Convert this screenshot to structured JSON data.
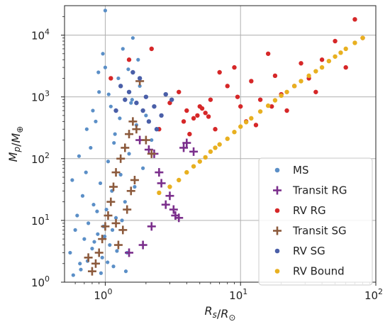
{
  "chart_data": {
    "type": "scatter",
    "title": "",
    "xlabel": "R_s/R_⊙",
    "ylabel": "M_p/M_⊕",
    "x_scale": "log",
    "y_scale": "log",
    "xlim": [
      0.5,
      100
    ],
    "ylim": [
      1,
      30000
    ],
    "x_ticks": [
      {
        "value": 1,
        "label": "10^0"
      },
      {
        "value": 10,
        "label": "10^1"
      },
      {
        "value": 100,
        "label": "10^2"
      }
    ],
    "y_ticks": [
      {
        "value": 1,
        "label": "10^0"
      },
      {
        "value": 10,
        "label": "10^1"
      },
      {
        "value": 100,
        "label": "10^2"
      },
      {
        "value": 1000,
        "label": "10^3"
      },
      {
        "value": 10000,
        "label": "10^4"
      }
    ],
    "grid": true,
    "legend_position": "lower-right",
    "series": [
      {
        "name": "MS",
        "marker": "dot",
        "color": "#5b8fc7",
        "points": [
          [
            0.55,
            3
          ],
          [
            0.6,
            7
          ],
          [
            0.62,
            12
          ],
          [
            0.65,
            2
          ],
          [
            0.68,
            25
          ],
          [
            0.7,
            5
          ],
          [
            0.72,
            60
          ],
          [
            0.75,
            9
          ],
          [
            0.78,
            150
          ],
          [
            0.8,
            3.5
          ],
          [
            0.82,
            18
          ],
          [
            0.85,
            400
          ],
          [
            0.88,
            6
          ],
          [
            0.9,
            1200
          ],
          [
            0.92,
            40
          ],
          [
            0.95,
            2.5
          ],
          [
            0.97,
            8
          ],
          [
            1.0,
            3000
          ],
          [
            1.02,
            15
          ],
          [
            1.05,
            90
          ],
          [
            1.08,
            4
          ],
          [
            1.1,
            700
          ],
          [
            1.12,
            30
          ],
          [
            1.15,
            1.8
          ],
          [
            1.18,
            250
          ],
          [
            1.2,
            11
          ],
          [
            1.25,
            2000
          ],
          [
            1.3,
            55
          ],
          [
            1.35,
            6000
          ],
          [
            1.4,
            20
          ],
          [
            1.45,
            3
          ],
          [
            1.5,
            120
          ],
          [
            1.55,
            800
          ],
          [
            1.6,
            9000
          ],
          [
            1.65,
            35
          ],
          [
            1.7,
            350
          ],
          [
            1.8,
            1500
          ],
          [
            1.9,
            70
          ],
          [
            2.0,
            500
          ],
          [
            2.2,
            200
          ],
          [
            0.58,
            1.3
          ],
          [
            0.66,
            1.6
          ],
          [
            0.74,
            2.2
          ],
          [
            0.83,
            4.5
          ],
          [
            0.87,
            14
          ],
          [
            0.93,
            1.4
          ],
          [
            0.99,
            5.5
          ],
          [
            1.04,
            2.1
          ],
          [
            1.13,
            7
          ],
          [
            1.22,
            3.2
          ],
          [
            1.33,
            10
          ],
          [
            1.42,
            1.5
          ],
          [
            0.57,
            45
          ],
          [
            0.64,
            110
          ],
          [
            0.73,
            300
          ],
          [
            0.81,
            600
          ],
          [
            0.89,
            2500
          ],
          [
            0.96,
            5000
          ],
          [
            1.06,
            1100
          ],
          [
            1.16,
            180
          ],
          [
            1.28,
            450
          ],
          [
            1.48,
            2800
          ],
          [
            1.58,
            900
          ],
          [
            1.75,
            4000
          ],
          [
            1.0,
            25000
          ]
        ]
      },
      {
        "name": "Transit RG",
        "marker": "plus",
        "color": "#7b2f8c",
        "points": [
          [
            1.8,
            200
          ],
          [
            2.1,
            140
          ],
          [
            2.3,
            120
          ],
          [
            2.5,
            60
          ],
          [
            2.6,
            40
          ],
          [
            3.0,
            25
          ],
          [
            3.2,
            15
          ],
          [
            3.5,
            11
          ],
          [
            3.8,
            150
          ],
          [
            4.0,
            180
          ],
          [
            4.5,
            130
          ],
          [
            2.2,
            8
          ],
          [
            1.5,
            3
          ],
          [
            1.9,
            4
          ],
          [
            2.8,
            18
          ],
          [
            3.3,
            12
          ]
        ]
      },
      {
        "name": "RV RG",
        "marker": "dot",
        "color": "#d62728",
        "points": [
          [
            2.5,
            300
          ],
          [
            3.0,
            800
          ],
          [
            3.5,
            1200
          ],
          [
            4.0,
            600
          ],
          [
            4.5,
            450
          ],
          [
            5.0,
            700
          ],
          [
            5.5,
            550
          ],
          [
            6.0,
            900
          ],
          [
            6.5,
            300
          ],
          [
            7.0,
            2500
          ],
          [
            8.0,
            1500
          ],
          [
            9.0,
            3000
          ],
          [
            10.0,
            700
          ],
          [
            11.0,
            400
          ],
          [
            12.0,
            1800
          ],
          [
            14.0,
            900
          ],
          [
            16.0,
            5000
          ],
          [
            18.0,
            2200
          ],
          [
            20.0,
            1100
          ],
          [
            22.0,
            600
          ],
          [
            25.0,
            1500
          ],
          [
            28.0,
            3500
          ],
          [
            32.0,
            2000
          ],
          [
            36.0,
            1200
          ],
          [
            40.0,
            4000
          ],
          [
            50.0,
            8000
          ],
          [
            60.0,
            3000
          ],
          [
            70.0,
            18000
          ],
          [
            80.0,
            9000
          ],
          [
            4.8,
            500
          ],
          [
            5.2,
            650
          ],
          [
            5.8,
            480
          ],
          [
            3.8,
            400
          ],
          [
            4.2,
            250
          ],
          [
            9.5,
            1000
          ],
          [
            13.0,
            350
          ],
          [
            17.0,
            700
          ],
          [
            2.2,
            6000
          ],
          [
            1.5,
            4000
          ],
          [
            1.1,
            2000
          ]
        ]
      },
      {
        "name": "Transit SG",
        "marker": "plus",
        "color": "#8c5a3c",
        "points": [
          [
            0.85,
            2
          ],
          [
            0.9,
            3
          ],
          [
            0.95,
            5
          ],
          [
            1.0,
            8
          ],
          [
            1.05,
            12
          ],
          [
            1.1,
            20
          ],
          [
            1.15,
            35
          ],
          [
            1.2,
            60
          ],
          [
            1.3,
            100
          ],
          [
            1.4,
            150
          ],
          [
            1.5,
            250
          ],
          [
            1.6,
            400
          ],
          [
            1.7,
            300
          ],
          [
            1.8,
            1800
          ],
          [
            2.0,
            200
          ],
          [
            2.2,
            120
          ],
          [
            0.8,
            1.5
          ],
          [
            1.25,
            4
          ],
          [
            1.35,
            7
          ],
          [
            1.45,
            15
          ],
          [
            0.75,
            2.5
          ],
          [
            1.55,
            30
          ],
          [
            1.65,
            45
          ],
          [
            1.2,
            9
          ]
        ]
      },
      {
        "name": "RV SG",
        "marker": "dot",
        "color": "#4a5fa8",
        "points": [
          [
            1.3,
            1500
          ],
          [
            1.5,
            1200
          ],
          [
            1.7,
            800
          ],
          [
            1.9,
            600
          ],
          [
            2.1,
            400
          ],
          [
            1.6,
            2500
          ],
          [
            1.8,
            2000
          ],
          [
            2.0,
            1000
          ],
          [
            2.3,
            700
          ],
          [
            2.6,
            500
          ],
          [
            1.4,
            900
          ],
          [
            1.2,
            600
          ],
          [
            2.4,
            300
          ],
          [
            2.8,
            1100
          ],
          [
            3.1,
            900
          ]
        ]
      },
      {
        "name": "RV Bound",
        "marker": "dot",
        "color": "#e8b020",
        "points": [
          [
            2.5,
            28
          ],
          [
            3.0,
            35
          ],
          [
            3.5,
            45
          ],
          [
            4.0,
            60
          ],
          [
            4.5,
            75
          ],
          [
            5.0,
            90
          ],
          [
            5.5,
            105
          ],
          [
            6.0,
            130
          ],
          [
            6.5,
            150
          ],
          [
            7.0,
            170
          ],
          [
            8.0,
            210
          ],
          [
            9.0,
            270
          ],
          [
            10.0,
            330
          ],
          [
            11.0,
            390
          ],
          [
            12.0,
            450
          ],
          [
            14.0,
            580
          ],
          [
            16.0,
            720
          ],
          [
            18.0,
            880
          ],
          [
            20.0,
            1050
          ],
          [
            22.0,
            1200
          ],
          [
            25.0,
            1500
          ],
          [
            28.0,
            1800
          ],
          [
            32.0,
            2200
          ],
          [
            36.0,
            2600
          ],
          [
            40.0,
            3000
          ],
          [
            45.0,
            3800
          ],
          [
            50.0,
            4500
          ],
          [
            55.0,
            5200
          ],
          [
            60.0,
            6000
          ],
          [
            70.0,
            7500
          ],
          [
            80.0,
            9000
          ]
        ]
      }
    ]
  }
}
